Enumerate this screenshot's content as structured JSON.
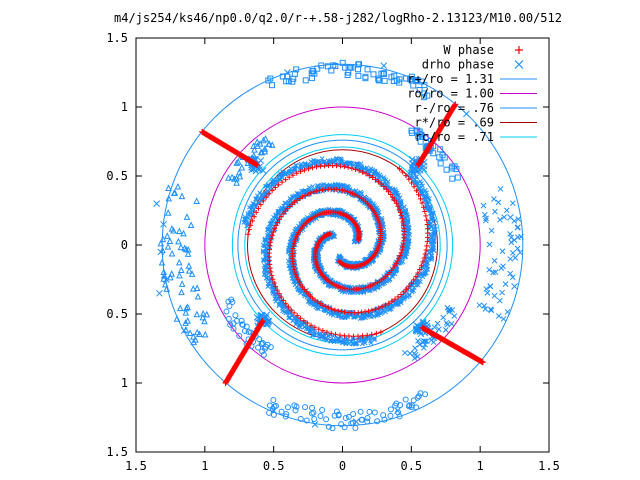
{
  "chart_data": {
    "type": "scatter",
    "title": "m4/js254/ks46/np0.0/q2.0/r-+.58-j282/logRho-2.13123/M10.00/512",
    "xlabel": "",
    "ylabel": "",
    "xlim": [
      -1.5,
      1.5
    ],
    "ylim": [
      -1.5,
      1.5
    ],
    "x_ticks": [
      -1.5,
      -1,
      -0.5,
      0,
      0.5,
      1,
      1.5
    ],
    "y_ticks": [
      -1.5,
      -1,
      -0.5,
      0,
      0.5,
      1,
      1.5
    ],
    "x_tick_labels": [
      "1.5",
      "1",
      "0.5",
      "0",
      "0.5",
      "1",
      "1.5"
    ],
    "y_tick_labels": [
      "1.5",
      "1",
      "0.5",
      "0",
      "0.5",
      "1",
      "1.5"
    ],
    "grid": false,
    "legend_position": "top-right",
    "legend": [
      {
        "label": "W phase",
        "kind": "points",
        "symbol": "+",
        "color": "#ff0000"
      },
      {
        "label": "drho phase",
        "kind": "points",
        "symbol": "x",
        "color": "#1e90ff"
      },
      {
        "label": "r+/ro = 1.31",
        "kind": "line",
        "color": "#1e90ff"
      },
      {
        "label": "ro/ro = 1.00",
        "kind": "line",
        "color": "#cc00cc"
      },
      {
        "label": "r-/ro = .76",
        "kind": "line",
        "color": "#1e90ff"
      },
      {
        "label": "r*/ro = .69",
        "kind": "line",
        "color": "#aa0000"
      },
      {
        "label": "rc/ro = .71",
        "kind": "line",
        "color": "#00ccff"
      }
    ],
    "circles": [
      {
        "name": "r+/ro",
        "r": 1.31,
        "color": "#1e90ff"
      },
      {
        "name": "ro/ro",
        "r": 1.0,
        "color": "#cc00cc"
      },
      {
        "name": "r-/ro",
        "r": 0.76,
        "color": "#1e90ff"
      },
      {
        "name": "r*/ro",
        "r": 0.69,
        "color": "#aa0000"
      },
      {
        "name": "rc/ro",
        "r": 0.71,
        "color": "#00ccff"
      },
      {
        "name": "inner-guide",
        "r": 0.8,
        "color": "#00ccff"
      }
    ],
    "w_phase_lines": [
      {
        "from": [
          -1.02,
          0.82
        ],
        "to": [
          -0.62,
          0.58
        ]
      },
      {
        "from": [
          0.82,
          1.02
        ],
        "to": [
          0.55,
          0.58
        ]
      },
      {
        "from": [
          -0.85,
          -1.0
        ],
        "to": [
          -0.58,
          -0.55
        ]
      },
      {
        "from": [
          1.02,
          -0.85
        ],
        "to": [
          0.58,
          -0.6
        ]
      }
    ],
    "series": [
      {
        "name": "W phase",
        "spirals": [
          {
            "r0": 0.12,
            "r1": 0.69,
            "theta0": 0.3,
            "turns": 1.1
          },
          {
            "r0": 0.12,
            "r1": 0.69,
            "theta0": 2.4,
            "turns": 1.1
          },
          {
            "r0": 0.12,
            "r1": 0.69,
            "theta0": 4.5,
            "turns": 1.1
          }
        ]
      },
      {
        "name": "drho phase",
        "spirals": [
          {
            "r0": 0.1,
            "r1": 0.72,
            "theta0": 0.2,
            "turns": 1.1
          },
          {
            "r0": 0.1,
            "r1": 0.72,
            "theta0": 2.3,
            "turns": 1.1
          },
          {
            "r0": 0.1,
            "r1": 0.72,
            "theta0": 4.4,
            "turns": 1.1
          }
        ],
        "arcs": [
          {
            "r_min": 1.22,
            "r_max": 1.32,
            "deg_from": 60,
            "deg_to": 115
          },
          {
            "r_min": 1.1,
            "r_max": 1.33,
            "deg_from": 160,
            "deg_to": 215
          },
          {
            "r_min": 1.2,
            "r_max": 1.33,
            "deg_from": 245,
            "deg_to": 300
          },
          {
            "r_min": 1.05,
            "r_max": 1.3,
            "deg_from": -25,
            "deg_to": 20
          },
          {
            "r_min": 0.92,
            "r_max": 1.0,
            "deg_from": 30,
            "deg_to": 60
          },
          {
            "r_min": 0.88,
            "r_max": 0.98,
            "deg_from": 125,
            "deg_to": 150
          },
          {
            "r_min": 0.9,
            "r_max": 1.0,
            "deg_from": 205,
            "deg_to": 235
          },
          {
            "r_min": 0.88,
            "r_max": 0.98,
            "deg_from": 300,
            "deg_to": 330
          }
        ],
        "points": [
          [
            -1.35,
            0.3
          ],
          [
            -1.3,
            0.15
          ],
          [
            -1.32,
            -0.05
          ],
          [
            -1.28,
            -0.25
          ],
          [
            -1.33,
            -0.35
          ],
          [
            -0.5,
            -1.2
          ],
          [
            -0.2,
            -1.3
          ],
          [
            0.1,
            -1.28
          ],
          [
            0.4,
            -1.2
          ],
          [
            0.9,
            0.95
          ],
          [
            -0.4,
            1.25
          ],
          [
            0.3,
            1.3
          ],
          [
            1.25,
            -0.3
          ],
          [
            1.22,
            0.2
          ],
          [
            -1.15,
            -0.62
          ]
        ]
      }
    ]
  }
}
